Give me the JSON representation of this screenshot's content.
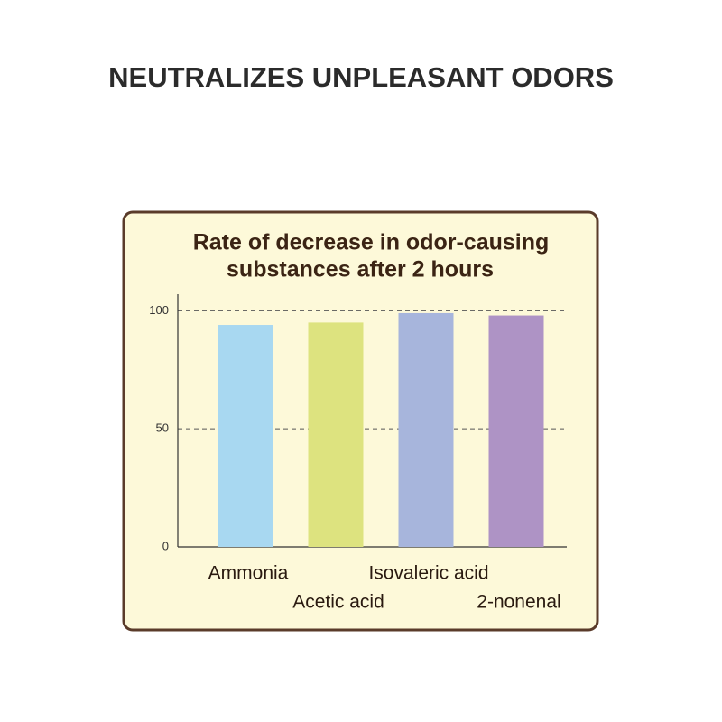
{
  "heading": "NEUTRALIZES UNPLEASANT ODORS",
  "chart_data": {
    "type": "bar",
    "title": [
      "Rate of decrease in odor-causing",
      "substances after 2 hours"
    ],
    "categories": [
      "Ammonia",
      "Acetic acid",
      "Isovaleric acid",
      "2-nonenal"
    ],
    "values": [
      94,
      95,
      99,
      98
    ],
    "colors": [
      "#a8d8f1",
      "#dde37f",
      "#a7b5dc",
      "#ae93c5"
    ],
    "ylim": [
      0,
      107
    ],
    "yticks": [
      0,
      50,
      100
    ],
    "grid": true
  }
}
